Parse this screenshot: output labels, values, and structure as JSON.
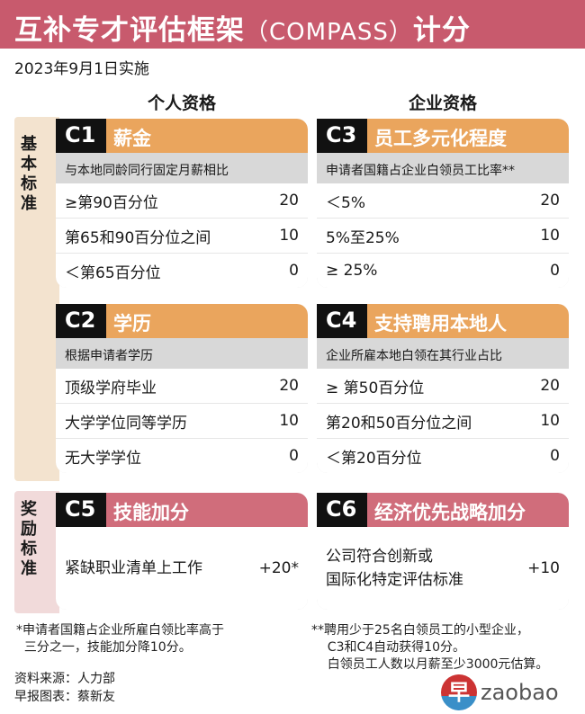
{
  "title": {
    "main": "互补专才评估框架",
    "en": "（COMPASS）",
    "tail": "计分"
  },
  "date": "2023年9月1日实施",
  "columns": {
    "personal": "个人资格",
    "company": "企业资格"
  },
  "bands": {
    "basic": "基本标准",
    "bonus": "奖励标准"
  },
  "colors": {
    "title": "#c85a6d",
    "basic_header": "#eaa55d",
    "bonus_header": "#d06d7b"
  },
  "cards": [
    {
      "code": "C1",
      "name": "薪金",
      "sub": "与本地同龄同行固定月薪相比",
      "rows": [
        {
          "label": "≥第90百分位",
          "score": "20"
        },
        {
          "label": "第65和90百分位之间",
          "score": "10"
        },
        {
          "label": "＜第65百分位",
          "score": "0"
        }
      ]
    },
    {
      "code": "C3",
      "name": "员工多元化程度",
      "sub": "申请者国籍占企业白领员工比率**",
      "rows": [
        {
          "label": "＜5%",
          "score": "20"
        },
        {
          "label": "5%至25%",
          "score": "10"
        },
        {
          "label": "≥ 25%",
          "score": "0"
        }
      ]
    },
    {
      "code": "C2",
      "name": "学历",
      "sub": "根据申请者学历",
      "rows": [
        {
          "label": "顶级学府毕业",
          "score": "20"
        },
        {
          "label": "大学学位同等学历",
          "score": "10"
        },
        {
          "label": "无大学学位",
          "score": "0"
        }
      ]
    },
    {
      "code": "C4",
      "name": "支持聘用本地人",
      "sub": "企业所雇本地白领在其行业占比",
      "rows": [
        {
          "label": "≥ 第50百分位",
          "score": "20"
        },
        {
          "label": "第20和50百分位之间",
          "score": "10"
        },
        {
          "label": "＜第20百分位",
          "score": "0"
        }
      ]
    }
  ],
  "bonus": [
    {
      "code": "C5",
      "name": "技能加分",
      "label": "紧缺职业清单上工作",
      "score": "+20*"
    },
    {
      "code": "C6",
      "name": "经济优先战略加分",
      "label": "公司符合创新或\n国际化特定评估标准",
      "score": "+10"
    }
  ],
  "notes": {
    "left": "*申请者国籍占企业所雇白领比率高于\n  三分之一，技能加分降10分。",
    "right": "**聘用少于25名白领员工的小型企业，\n    C3和C4自动获得10分。\n    白领员工人数以月薪至少3000元估算。"
  },
  "source": {
    "line1": "资料来源：人力部",
    "line2": "早报图表：蔡新友"
  },
  "logo": {
    "mark": "早",
    "text": "zaobao"
  }
}
